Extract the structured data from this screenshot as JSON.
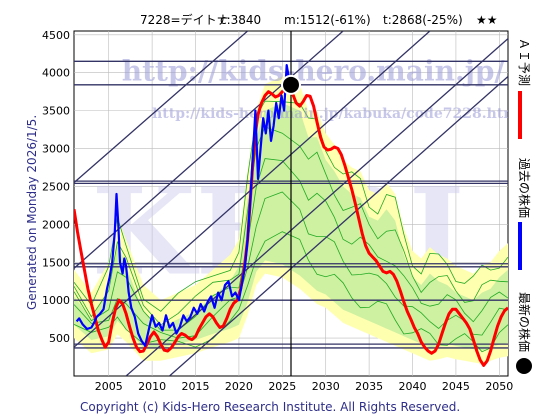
{
  "header": {
    "code_name": "7228=デイトナ",
    "current": "c:3840",
    "min": "m:1512(-61%)",
    "target": "t:2868(-25%)",
    "stars": "★★"
  },
  "side_label": "Generated on Monday 2026/1/5.",
  "footer": "Copyright (c) Kids-Hero Research Institute. All Rights Reserved.",
  "watermarks": {
    "url1": "http://kids-hero.main.jp/",
    "url2": "http://kids-hero.main.jp/kabuka/code7228.html",
    "logo": "KHRI"
  },
  "legend": {
    "ai_forecast": "ＡＩ予測",
    "past_price": "過去の株価",
    "latest_price": "最新の株価"
  },
  "colors": {
    "ai": "#ff0000",
    "past": "#0000ff",
    "latest": "#000000",
    "band_fill_yellow": "#ffffb0",
    "band_fill_green": "#c8f0a0",
    "band_line": "#22aa22",
    "grid": "#bbbbbb",
    "hline": "#333366",
    "diag": "#333366",
    "credit": "#2e2e8a"
  },
  "chart_data": {
    "type": "line",
    "xlim": [
      2001,
      2051
    ],
    "ylim": [
      0,
      4550
    ],
    "x_ticks": [
      2005,
      2010,
      2015,
      2020,
      2025,
      2030,
      2035,
      2040,
      2045,
      2050
    ],
    "y_ticks": [
      500,
      1000,
      1500,
      2000,
      2500,
      3000,
      3500,
      4000,
      4500
    ],
    "x_tick_labels": [
      "2005",
      "2010",
      "2015",
      "2020",
      "2025",
      "2030",
      "2035",
      "2040",
      "2045",
      "2050"
    ],
    "y_tick_labels": [
      "500",
      "1000",
      "1500",
      "2000",
      "2500",
      "3000",
      "3500",
      "4000",
      "4500"
    ],
    "grid": true,
    "horizontal_levels": [
      4150,
      3840,
      2570,
      2540,
      1480,
      1440,
      1000,
      420,
      370
    ],
    "vertical_marker_x": 2026.0,
    "diagonal_lines": [
      {
        "x1": 2001,
        "y1": 380,
        "x2": 2042,
        "y2": 4550
      },
      {
        "x1": 2001,
        "y1": 1420,
        "x2": 2032,
        "y2": 4550
      },
      {
        "x1": 2001,
        "y1": 2550,
        "x2": 2021,
        "y2": 4550
      },
      {
        "x1": 2007,
        "y1": 0,
        "x2": 2051,
        "y2": 4450
      },
      {
        "x1": 2012,
        "y1": 0,
        "x2": 2051,
        "y2": 3950
      }
    ],
    "past_price": [
      [
        2001.3,
        720
      ],
      [
        2001.6,
        760
      ],
      [
        2002.0,
        680
      ],
      [
        2002.5,
        620
      ],
      [
        2003.0,
        640
      ],
      [
        2003.3,
        700
      ],
      [
        2003.6,
        780
      ],
      [
        2004.0,
        820
      ],
      [
        2004.4,
        880
      ],
      [
        2004.8,
        1150
      ],
      [
        2005.1,
        1300
      ],
      [
        2005.4,
        1500
      ],
      [
        2005.7,
        1900
      ],
      [
        2005.9,
        2400
      ],
      [
        2006.1,
        2000
      ],
      [
        2006.3,
        1500
      ],
      [
        2006.6,
        1350
      ],
      [
        2006.8,
        1550
      ],
      [
        2007.0,
        1450
      ],
      [
        2007.3,
        1100
      ],
      [
        2007.6,
        900
      ],
      [
        2008.0,
        780
      ],
      [
        2008.4,
        560
      ],
      [
        2008.8,
        460
      ],
      [
        2009.2,
        400
      ],
      [
        2009.6,
        600
      ],
      [
        2010.0,
        800
      ],
      [
        2010.4,
        650
      ],
      [
        2010.8,
        700
      ],
      [
        2011.2,
        600
      ],
      [
        2011.6,
        800
      ],
      [
        2012.0,
        640
      ],
      [
        2012.4,
        700
      ],
      [
        2012.8,
        560
      ],
      [
        2013.2,
        650
      ],
      [
        2013.6,
        800
      ],
      [
        2014.0,
        720
      ],
      [
        2014.4,
        780
      ],
      [
        2014.8,
        900
      ],
      [
        2015.2,
        820
      ],
      [
        2015.6,
        950
      ],
      [
        2016.0,
        850
      ],
      [
        2016.4,
        980
      ],
      [
        2016.8,
        1050
      ],
      [
        2017.2,
        900
      ],
      [
        2017.6,
        1100
      ],
      [
        2018.0,
        1000
      ],
      [
        2018.4,
        1200
      ],
      [
        2018.8,
        1250
      ],
      [
        2019.2,
        1050
      ],
      [
        2019.6,
        1100
      ],
      [
        2020.0,
        1000
      ],
      [
        2020.4,
        1250
      ],
      [
        2020.7,
        1450
      ],
      [
        2021.0,
        1800
      ],
      [
        2021.3,
        2300
      ],
      [
        2021.6,
        2900
      ],
      [
        2021.9,
        3500
      ],
      [
        2022.2,
        2600
      ],
      [
        2022.5,
        3000
      ],
      [
        2022.8,
        3400
      ],
      [
        2023.1,
        3200
      ],
      [
        2023.4,
        3500
      ],
      [
        2023.7,
        3100
      ],
      [
        2024.0,
        3300
      ],
      [
        2024.3,
        3600
      ],
      [
        2024.6,
        3400
      ],
      [
        2024.9,
        3700
      ],
      [
        2025.2,
        3500
      ],
      [
        2025.5,
        4100
      ],
      [
        2025.8,
        3900
      ],
      [
        2026.0,
        3840
      ]
    ],
    "ai_forecast": [
      [
        2001.0,
        2200
      ],
      [
        2001.4,
        1900
      ],
      [
        2001.8,
        1650
      ],
      [
        2002.2,
        1400
      ],
      [
        2002.6,
        1150
      ],
      [
        2003.0,
        950
      ],
      [
        2003.4,
        780
      ],
      [
        2003.8,
        600
      ],
      [
        2004.2,
        480
      ],
      [
        2004.6,
        380
      ],
      [
        2005.0,
        450
      ],
      [
        2005.4,
        700
      ],
      [
        2005.8,
        900
      ],
      [
        2006.2,
        1000
      ],
      [
        2006.6,
        950
      ],
      [
        2007.0,
        820
      ],
      [
        2007.4,
        650
      ],
      [
        2007.8,
        500
      ],
      [
        2008.2,
        380
      ],
      [
        2008.6,
        320
      ],
      [
        2009.0,
        330
      ],
      [
        2009.4,
        420
      ],
      [
        2009.8,
        520
      ],
      [
        2010.2,
        580
      ],
      [
        2010.6,
        520
      ],
      [
        2011.0,
        420
      ],
      [
        2011.4,
        340
      ],
      [
        2011.8,
        330
      ],
      [
        2012.2,
        370
      ],
      [
        2012.6,
        440
      ],
      [
        2013.0,
        520
      ],
      [
        2013.4,
        560
      ],
      [
        2013.8,
        540
      ],
      [
        2014.2,
        500
      ],
      [
        2014.6,
        480
      ],
      [
        2015.0,
        520
      ],
      [
        2015.4,
        620
      ],
      [
        2015.8,
        700
      ],
      [
        2016.2,
        780
      ],
      [
        2016.6,
        820
      ],
      [
        2017.0,
        780
      ],
      [
        2017.4,
        700
      ],
      [
        2017.8,
        640
      ],
      [
        2018.2,
        660
      ],
      [
        2018.6,
        760
      ],
      [
        2019.0,
        880
      ],
      [
        2019.4,
        960
      ],
      [
        2019.8,
        1000
      ],
      [
        2020.2,
        1150
      ],
      [
        2020.6,
        1400
      ],
      [
        2021.0,
        1800
      ],
      [
        2021.3,
        2300
      ],
      [
        2021.6,
        2800
      ],
      [
        2021.9,
        3200
      ],
      [
        2022.2,
        3450
      ],
      [
        2022.6,
        3600
      ],
      [
        2023.0,
        3700
      ],
      [
        2023.4,
        3750
      ],
      [
        2023.8,
        3720
      ],
      [
        2024.2,
        3680
      ],
      [
        2024.6,
        3700
      ],
      [
        2025.0,
        3750
      ],
      [
        2025.4,
        3800
      ],
      [
        2025.8,
        3790
      ],
      [
        2026.2,
        3720
      ],
      [
        2026.6,
        3600
      ],
      [
        2027.0,
        3560
      ],
      [
        2027.4,
        3620
      ],
      [
        2027.8,
        3700
      ],
      [
        2028.2,
        3690
      ],
      [
        2028.6,
        3560
      ],
      [
        2029.0,
        3350
      ],
      [
        2029.4,
        3150
      ],
      [
        2029.8,
        3020
      ],
      [
        2030.2,
        2980
      ],
      [
        2030.6,
        2990
      ],
      [
        2031.0,
        3020
      ],
      [
        2031.4,
        3000
      ],
      [
        2031.8,
        2920
      ],
      [
        2032.2,
        2780
      ],
      [
        2032.6,
        2620
      ],
      [
        2033.0,
        2460
      ],
      [
        2033.4,
        2280
      ],
      [
        2033.8,
        2080
      ],
      [
        2034.2,
        1880
      ],
      [
        2034.6,
        1720
      ],
      [
        2035.0,
        1620
      ],
      [
        2035.4,
        1570
      ],
      [
        2035.8,
        1520
      ],
      [
        2036.2,
        1450
      ],
      [
        2036.6,
        1380
      ],
      [
        2037.0,
        1360
      ],
      [
        2037.4,
        1380
      ],
      [
        2037.8,
        1340
      ],
      [
        2038.2,
        1250
      ],
      [
        2038.6,
        1120
      ],
      [
        2039.0,
        980
      ],
      [
        2039.4,
        850
      ],
      [
        2039.8,
        750
      ],
      [
        2040.2,
        640
      ],
      [
        2040.6,
        560
      ],
      [
        2041.0,
        450
      ],
      [
        2041.4,
        380
      ],
      [
        2041.8,
        330
      ],
      [
        2042.2,
        300
      ],
      [
        2042.6,
        330
      ],
      [
        2043.0,
        420
      ],
      [
        2043.4,
        560
      ],
      [
        2043.8,
        700
      ],
      [
        2044.2,
        820
      ],
      [
        2044.6,
        880
      ],
      [
        2045.0,
        880
      ],
      [
        2045.4,
        820
      ],
      [
        2045.8,
        760
      ],
      [
        2046.2,
        700
      ],
      [
        2046.6,
        620
      ],
      [
        2047.0,
        480
      ],
      [
        2047.4,
        330
      ],
      [
        2047.8,
        210
      ],
      [
        2048.2,
        140
      ],
      [
        2048.6,
        200
      ],
      [
        2049.0,
        330
      ],
      [
        2049.4,
        500
      ],
      [
        2049.8,
        660
      ],
      [
        2050.2,
        780
      ],
      [
        2050.6,
        860
      ],
      [
        2051.0,
        900
      ]
    ],
    "band_upper": [
      [
        2001,
        1400
      ],
      [
        2003,
        1100
      ],
      [
        2005,
        1500
      ],
      [
        2006,
        2100
      ],
      [
        2007,
        1800
      ],
      [
        2009,
        1200
      ],
      [
        2011,
        1000
      ],
      [
        2013,
        1100
      ],
      [
        2015,
        1200
      ],
      [
        2017,
        1400
      ],
      [
        2019,
        1600
      ],
      [
        2020,
        1800
      ],
      [
        2021,
        2700
      ],
      [
        2022,
        3500
      ],
      [
        2023,
        3850
      ],
      [
        2025,
        3950
      ],
      [
        2027,
        3850
      ],
      [
        2028,
        3500
      ],
      [
        2029,
        3500
      ],
      [
        2030,
        3200
      ],
      [
        2031,
        3050
      ],
      [
        2032,
        2850
      ],
      [
        2033,
        2750
      ],
      [
        2034,
        2700
      ],
      [
        2035,
        2450
      ],
      [
        2036,
        2400
      ],
      [
        2037,
        2550
      ],
      [
        2038,
        2400
      ],
      [
        2039,
        1950
      ],
      [
        2040,
        1650
      ],
      [
        2041,
        1550
      ],
      [
        2042,
        1700
      ],
      [
        2043,
        1600
      ],
      [
        2044,
        1550
      ],
      [
        2045,
        1450
      ],
      [
        2046,
        1400
      ],
      [
        2047,
        1350
      ],
      [
        2048,
        1450
      ],
      [
        2049,
        1500
      ],
      [
        2050,
        1650
      ],
      [
        2051,
        1750
      ]
    ],
    "band_lower": [
      [
        2001,
        500
      ],
      [
        2003,
        300
      ],
      [
        2005,
        350
      ],
      [
        2006,
        550
      ],
      [
        2007,
        450
      ],
      [
        2009,
        200
      ],
      [
        2011,
        200
      ],
      [
        2013,
        250
      ],
      [
        2015,
        300
      ],
      [
        2017,
        380
      ],
      [
        2019,
        450
      ],
      [
        2020,
        500
      ],
      [
        2021,
        800
      ],
      [
        2022,
        1200
      ],
      [
        2023,
        1350
      ],
      [
        2025,
        1300
      ],
      [
        2027,
        1150
      ],
      [
        2028,
        1050
      ],
      [
        2029,
        950
      ],
      [
        2030,
        900
      ],
      [
        2031,
        800
      ],
      [
        2032,
        700
      ],
      [
        2033,
        650
      ],
      [
        2034,
        600
      ],
      [
        2035,
        550
      ],
      [
        2036,
        500
      ],
      [
        2037,
        450
      ],
      [
        2038,
        400
      ],
      [
        2039,
        350
      ],
      [
        2040,
        300
      ],
      [
        2041,
        250
      ],
      [
        2042,
        200
      ],
      [
        2043,
        220
      ],
      [
        2044,
        250
      ],
      [
        2045,
        220
      ],
      [
        2046,
        200
      ],
      [
        2047,
        180
      ],
      [
        2048,
        160
      ],
      [
        2049,
        200
      ],
      [
        2050,
        240
      ],
      [
        2051,
        260
      ]
    ],
    "latest_point": [
      2026.0,
      3840
    ]
  }
}
